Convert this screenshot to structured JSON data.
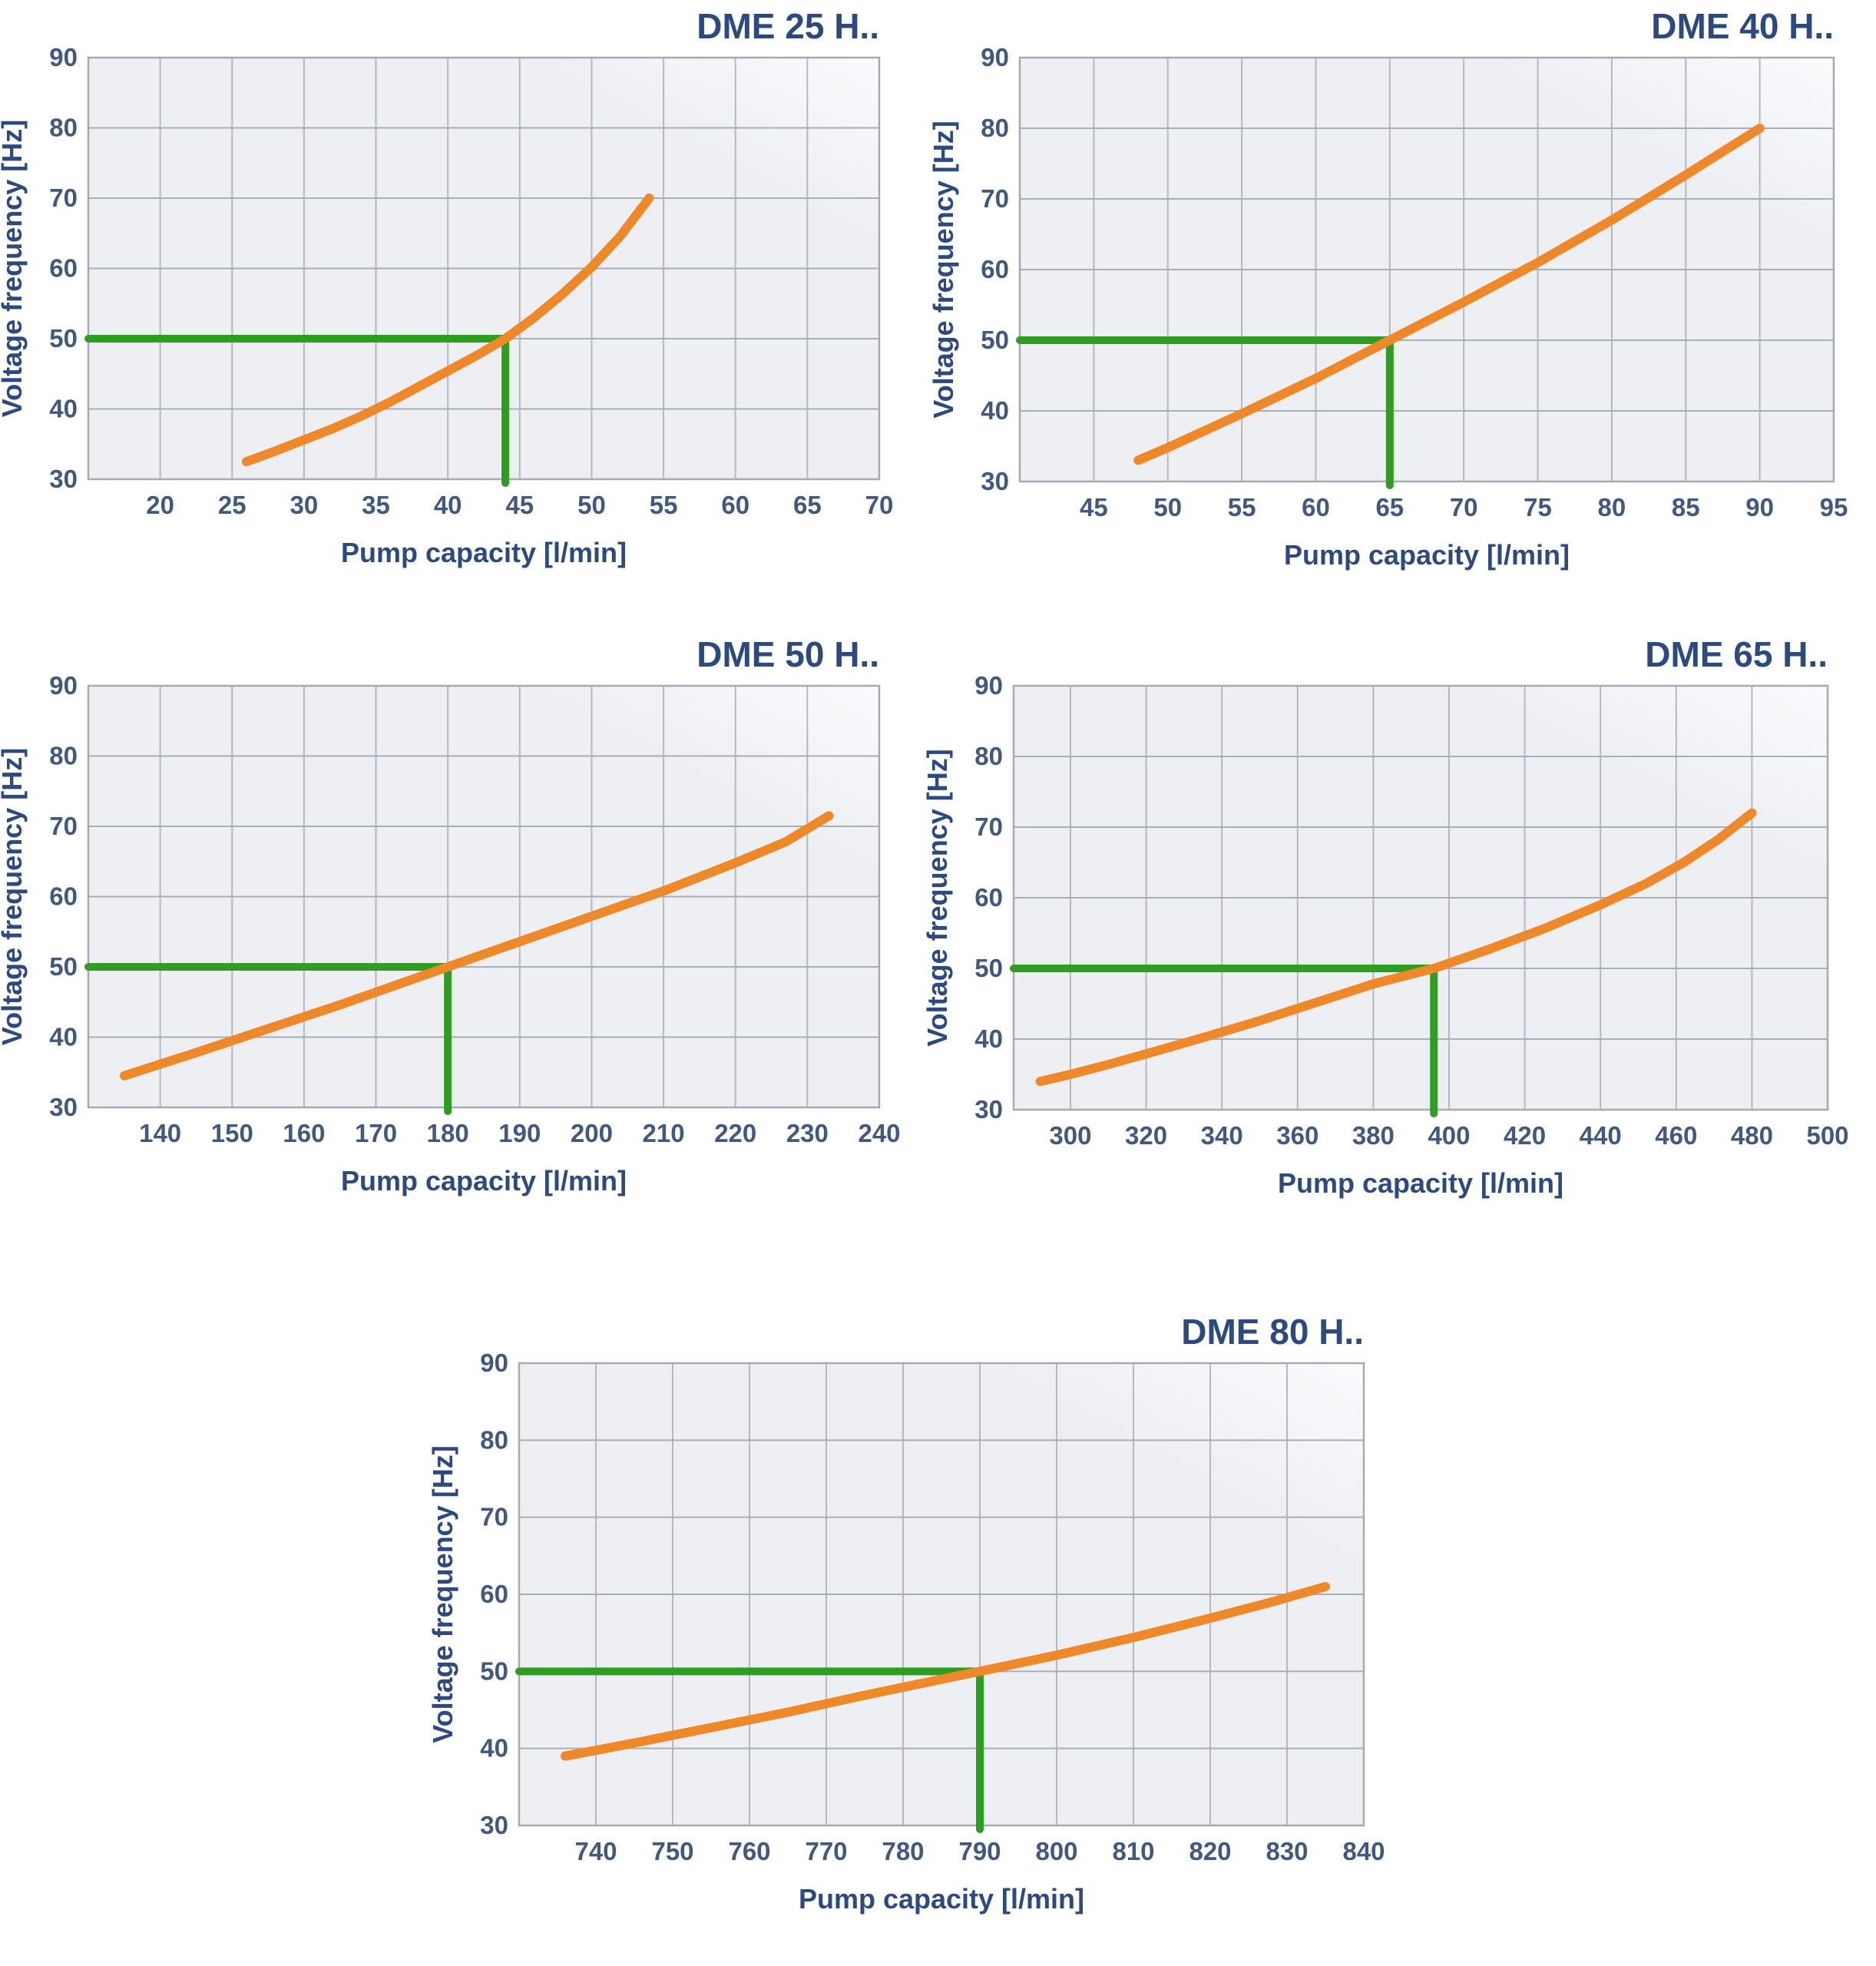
{
  "page": {
    "background": "#ffffff"
  },
  "colors": {
    "curve_orange": "#EF8829",
    "guide_green": "#2F9D22",
    "title_navy": "#2C4A80",
    "tick_navy": "#42597F",
    "grid_horizontal": "#A9ADB6",
    "grid_vertical": "#B4B8C0",
    "plot_border": "#A6AAB3",
    "plot_bg_from": "#EDEFF3",
    "plot_bg_to": "#FAFBFD"
  },
  "chart_data": [
    {
      "id": "dme-25",
      "type": "line",
      "title": "DME 25 H..",
      "xlabel": "Pump capacity [l/min]",
      "ylabel": "Voltage frequency [Hz]",
      "x_range": [
        15,
        70
      ],
      "y_range": [
        30,
        90
      ],
      "x_ticks": [
        20,
        25,
        30,
        35,
        40,
        45,
        50,
        55,
        60,
        65,
        70
      ],
      "y_ticks": [
        30,
        40,
        50,
        60,
        70,
        80,
        90
      ],
      "grid": true,
      "legend_position": "none",
      "series": [
        {
          "name": "capacity-vs-frequency",
          "color_key": "curve_orange",
          "points": [
            [
              26,
              32.5
            ],
            [
              28,
              34
            ],
            [
              30,
              35.6
            ],
            [
              32,
              37.2
            ],
            [
              34,
              39
            ],
            [
              36,
              41
            ],
            [
              38,
              43.2
            ],
            [
              40,
              45.4
            ],
            [
              42,
              47.6
            ],
            [
              44,
              50
            ],
            [
              46,
              53
            ],
            [
              48,
              56.4
            ],
            [
              50,
              60.2
            ],
            [
              52,
              64.6
            ],
            [
              54,
              70
            ]
          ]
        }
      ],
      "guide": {
        "name": "50hz-operating-point",
        "frequency_hz": 50,
        "capacity_l_min": 44,
        "color_key": "guide_green"
      }
    },
    {
      "id": "dme-40",
      "type": "line",
      "title": "DME 40 H..",
      "xlabel": "Pump capacity [l/min]",
      "ylabel": "Voltage frequency [Hz]",
      "x_range": [
        40,
        95
      ],
      "y_range": [
        30,
        90
      ],
      "x_ticks": [
        45,
        50,
        55,
        60,
        65,
        70,
        75,
        80,
        85,
        90,
        95
      ],
      "y_ticks": [
        30,
        40,
        50,
        60,
        70,
        80,
        90
      ],
      "grid": true,
      "legend_position": "none",
      "series": [
        {
          "name": "capacity-vs-frequency",
          "color_key": "curve_orange",
          "points": [
            [
              48,
              33
            ],
            [
              50,
              34.8
            ],
            [
              55,
              39.6
            ],
            [
              60,
              44.6
            ],
            [
              65,
              50
            ],
            [
              70,
              55.4
            ],
            [
              75,
              61
            ],
            [
              80,
              67
            ],
            [
              85,
              73.4
            ],
            [
              90,
              80
            ]
          ]
        }
      ],
      "guide": {
        "name": "50hz-operating-point",
        "frequency_hz": 50,
        "capacity_l_min": 65,
        "color_key": "guide_green"
      }
    },
    {
      "id": "dme-50",
      "type": "line",
      "title": "DME 50 H..",
      "xlabel": "Pump capacity [l/min]",
      "ylabel": "Voltage frequency [Hz]",
      "x_range": [
        130,
        240
      ],
      "y_range": [
        30,
        90
      ],
      "x_ticks": [
        140,
        150,
        160,
        170,
        180,
        190,
        200,
        210,
        220,
        230,
        240
      ],
      "y_ticks": [
        30,
        40,
        50,
        60,
        70,
        80,
        90
      ],
      "grid": true,
      "legend_position": "none",
      "series": [
        {
          "name": "capacity-vs-frequency",
          "color_key": "curve_orange",
          "points": [
            [
              135,
              34.5
            ],
            [
              145,
              37.8
            ],
            [
              155,
              41.2
            ],
            [
              165,
              44.6
            ],
            [
              172.5,
              47.3
            ],
            [
              180,
              50
            ],
            [
              190,
              53.6
            ],
            [
              200,
              57.2
            ],
            [
              210,
              60.8
            ],
            [
              220,
              64.8
            ],
            [
              227,
              67.8
            ],
            [
              233,
              71.5
            ]
          ]
        }
      ],
      "guide": {
        "name": "50hz-operating-point",
        "frequency_hz": 50,
        "capacity_l_min": 180,
        "color_key": "guide_green"
      }
    },
    {
      "id": "dme-65",
      "type": "line",
      "title": "DME 65 H..",
      "xlabel": "Pump capacity [l/min]",
      "ylabel": "Voltage frequency [Hz]",
      "x_range": [
        285,
        500
      ],
      "y_range": [
        30,
        90
      ],
      "x_ticks": [
        300,
        320,
        340,
        360,
        380,
        400,
        420,
        440,
        460,
        480,
        500
      ],
      "y_ticks": [
        30,
        40,
        50,
        60,
        70,
        80,
        90
      ],
      "grid": true,
      "legend_position": "none",
      "series": [
        {
          "name": "capacity-vs-frequency",
          "color_key": "curve_orange",
          "points": [
            [
              292,
              34
            ],
            [
              300,
              35
            ],
            [
              310,
              36.4
            ],
            [
              320,
              37.9
            ],
            [
              335,
              40.2
            ],
            [
              350,
              42.6
            ],
            [
              365,
              45.2
            ],
            [
              380,
              47.8
            ],
            [
              396,
              50
            ],
            [
              410,
              52.6
            ],
            [
              425,
              55.6
            ],
            [
              440,
              59
            ],
            [
              452,
              62
            ],
            [
              462,
              65
            ],
            [
              471,
              68.2
            ],
            [
              480,
              72
            ]
          ]
        }
      ],
      "guide": {
        "name": "50hz-operating-point",
        "frequency_hz": 50,
        "capacity_l_min": 396,
        "color_key": "guide_green"
      }
    },
    {
      "id": "dme-80",
      "type": "line",
      "title": "DME 80 H..",
      "xlabel": "Pump capacity [l/min]",
      "ylabel": "Voltage frequency [Hz]",
      "x_range": [
        730,
        840
      ],
      "y_range": [
        30,
        90
      ],
      "x_ticks": [
        740,
        750,
        760,
        770,
        780,
        790,
        800,
        810,
        820,
        830,
        840
      ],
      "y_ticks": [
        30,
        40,
        50,
        60,
        70,
        80,
        90
      ],
      "grid": true,
      "legend_position": "none",
      "series": [
        {
          "name": "capacity-vs-frequency",
          "color_key": "curve_orange",
          "points": [
            [
              736,
              39
            ],
            [
              745,
              40.7
            ],
            [
              755,
              42.7
            ],
            [
              765,
              44.7
            ],
            [
              775,
              46.9
            ],
            [
              790,
              50
            ],
            [
              800,
              52.1
            ],
            [
              810,
              54.4
            ],
            [
              820,
              56.9
            ],
            [
              828,
              59
            ],
            [
              835,
              61
            ]
          ]
        }
      ],
      "guide": {
        "name": "50hz-operating-point",
        "frequency_hz": 50,
        "capacity_l_min": 790,
        "color_key": "guide_green"
      }
    }
  ]
}
